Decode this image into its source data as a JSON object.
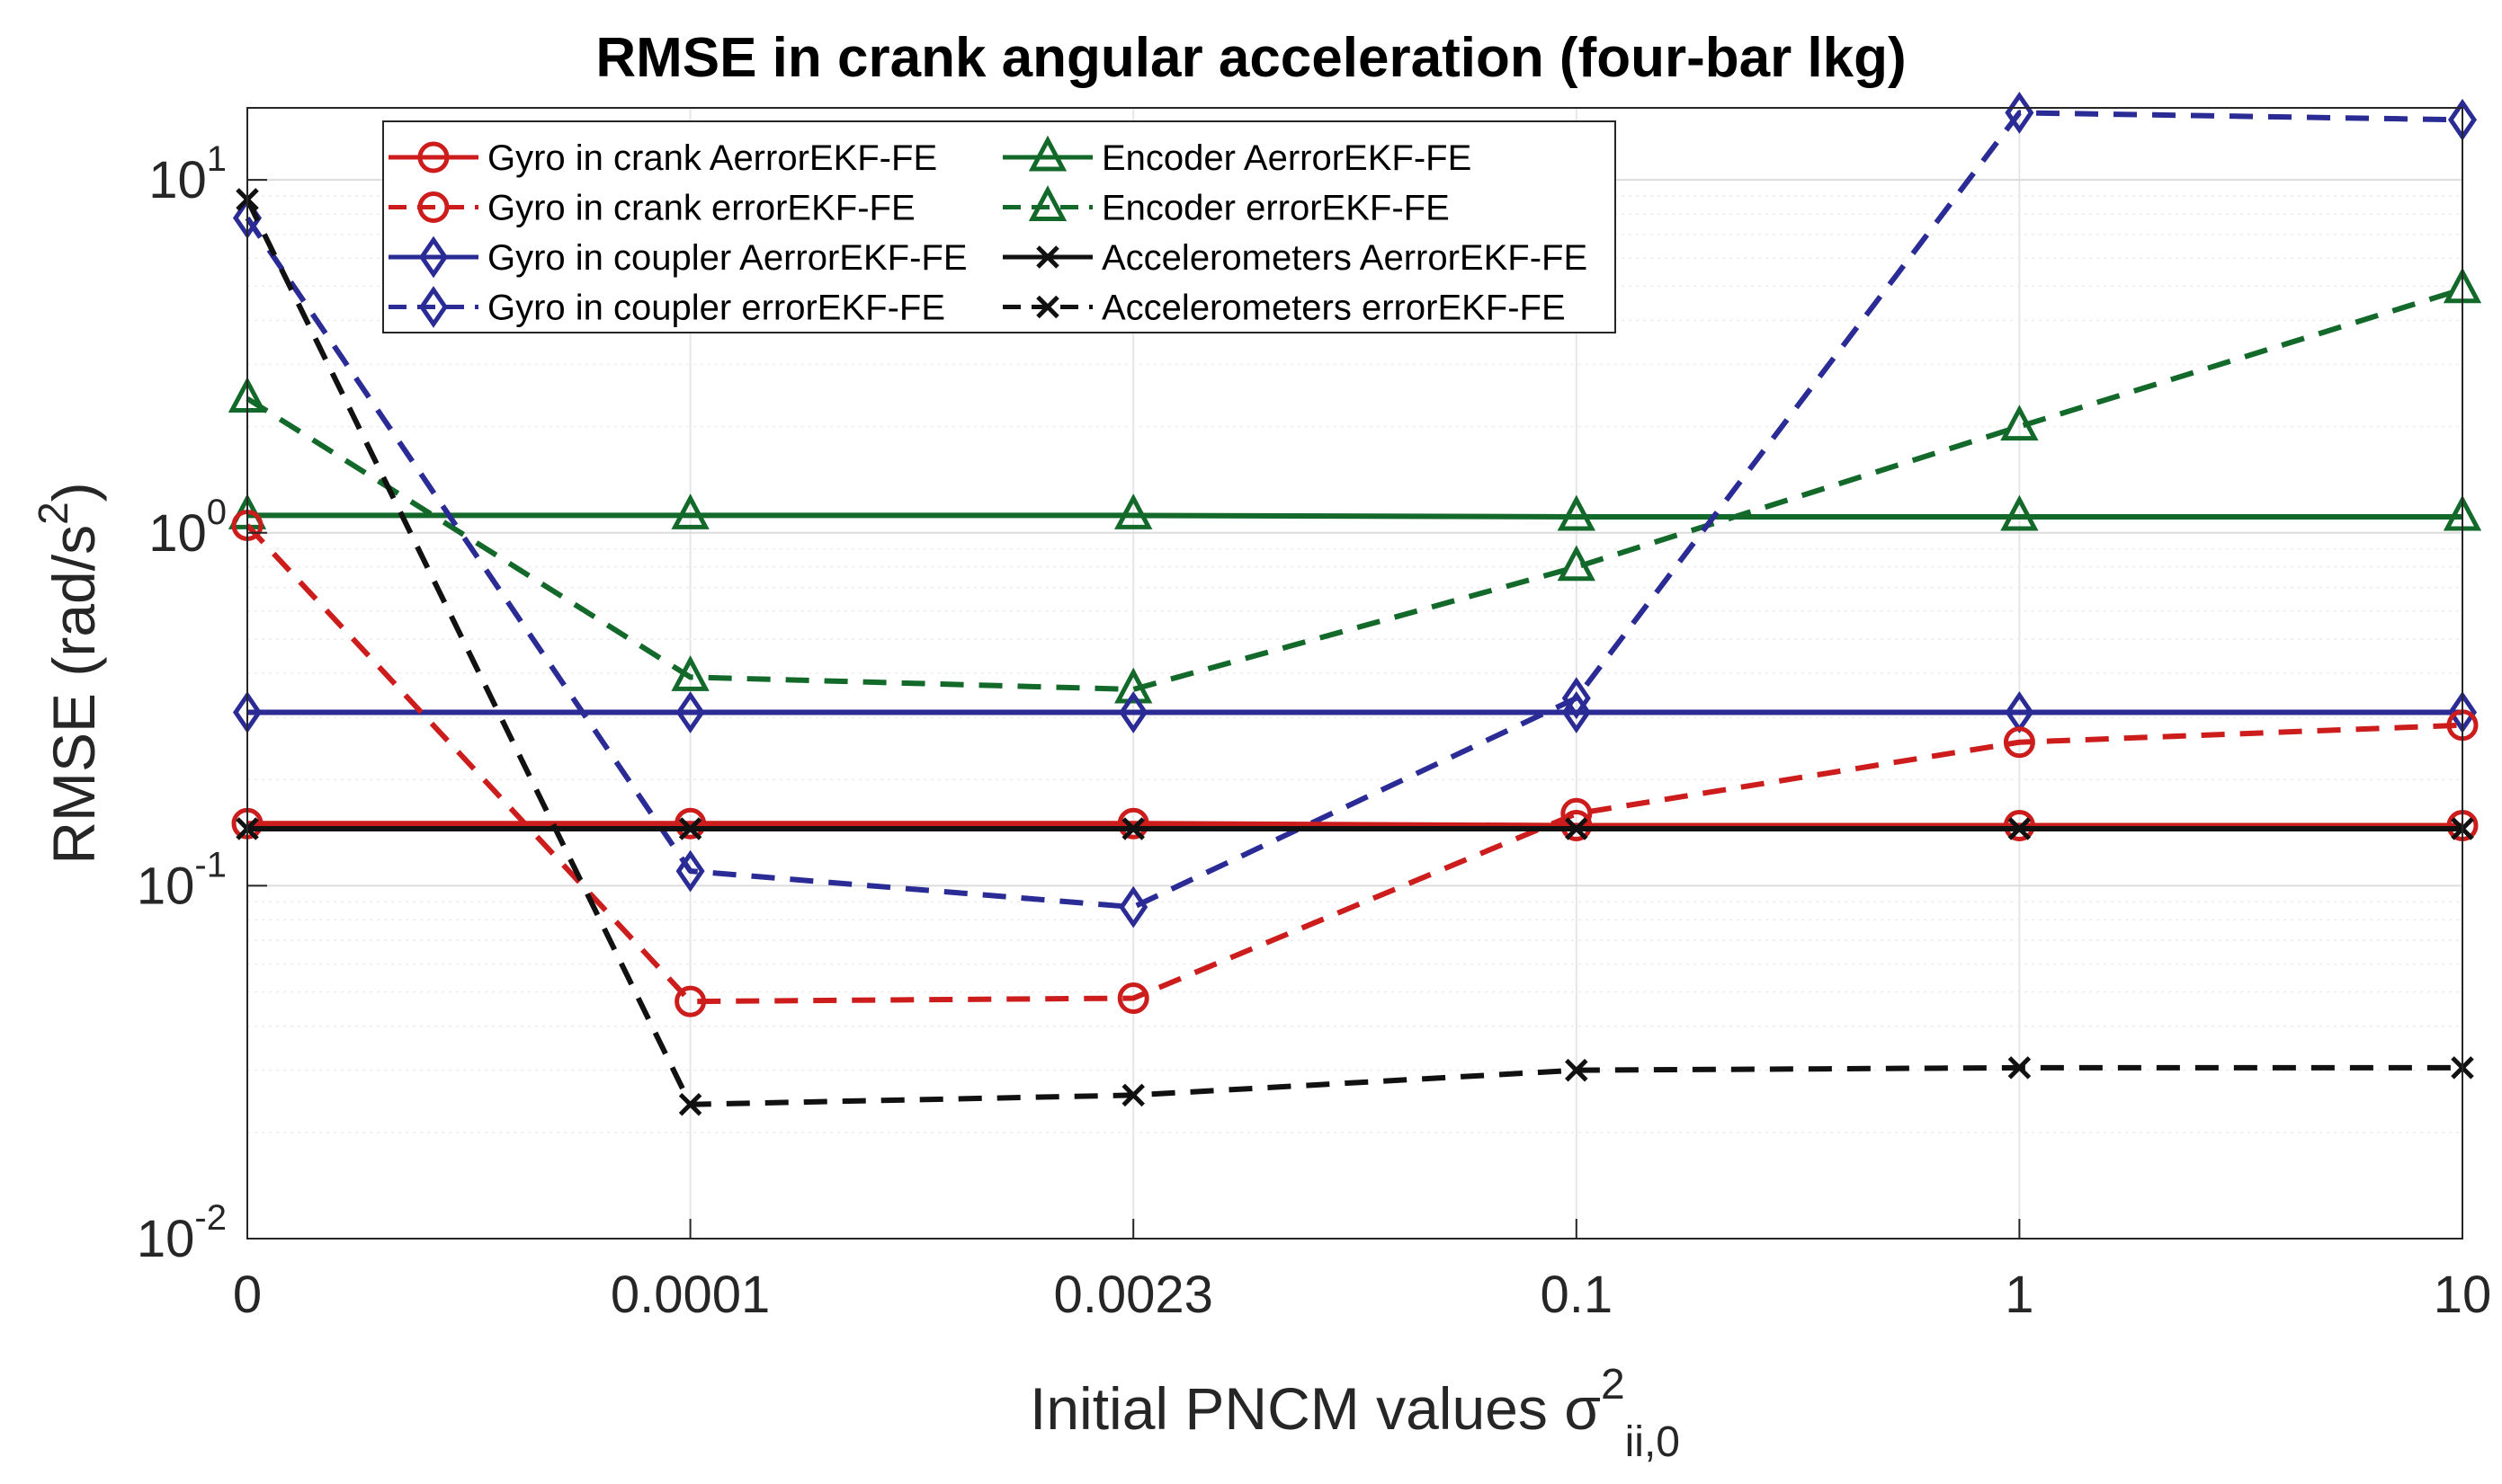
{
  "chart_data": {
    "type": "line",
    "title": "RMSE in crank angular acceleration (four-bar lkg)",
    "xlabel": "Initial PNCM values σ",
    "xlabel_superscript": "2",
    "xlabel_subscript": "ii,0",
    "ylabel": "RMSE (rad/s",
    "ylabel_superscript": "2",
    "ylabel_suffix": ")",
    "yscale": "log",
    "ylim": [
      0.01,
      16
    ],
    "categories": [
      "0",
      "0.0001",
      "0.0023",
      "0.1",
      "1",
      "10"
    ],
    "y_ticks": [
      {
        "base": "10",
        "exp": "-2",
        "value": 0.01
      },
      {
        "base": "10",
        "exp": "-1",
        "value": 0.1
      },
      {
        "base": "10",
        "exp": "0",
        "value": 1
      },
      {
        "base": "10",
        "exp": "1",
        "value": 10
      }
    ],
    "grid": true,
    "legend": "top-left",
    "series": [
      {
        "name": "Gyro in crank AerrorEKF-FE",
        "color": "#cc1c1c",
        "dash": "solid",
        "marker": "circle",
        "values": [
          0.15,
          0.15,
          0.15,
          0.148,
          0.148,
          0.148
        ]
      },
      {
        "name": "Gyro in crank errorEKF-FE",
        "color": "#cc1c1c",
        "dash": "dashed",
        "marker": "circle",
        "values": [
          1.05,
          0.047,
          0.048,
          0.16,
          0.255,
          0.285
        ]
      },
      {
        "name": "Gyro in coupler AerrorEKF-FE",
        "color": "#2b2b96",
        "dash": "solid",
        "marker": "diamond",
        "values": [
          0.31,
          0.31,
          0.31,
          0.31,
          0.31,
          0.31
        ]
      },
      {
        "name": "Gyro in coupler errorEKF-FE",
        "color": "#2b2b96",
        "dash": "dashed",
        "marker": "diamond",
        "values": [
          7.8,
          0.11,
          0.087,
          0.34,
          15.5,
          14.8
        ]
      },
      {
        "name": "Encoder AerrorEKF-FE",
        "color": "#12692a",
        "dash": "solid",
        "marker": "triangle",
        "values": [
          1.12,
          1.12,
          1.12,
          1.11,
          1.11,
          1.11
        ]
      },
      {
        "name": "Encoder errorEKF-FE",
        "color": "#12692a",
        "dash": "dashed",
        "marker": "triangle",
        "values": [
          2.4,
          0.39,
          0.36,
          0.8,
          2.0,
          4.9
        ]
      },
      {
        "name": "Accelerometers AerrorEKF-FE",
        "color": "#111111",
        "dash": "solid",
        "marker": "x",
        "values": [
          0.145,
          0.145,
          0.145,
          0.145,
          0.145,
          0.145
        ]
      },
      {
        "name": "Accelerometers errorEKF-FE",
        "color": "#111111",
        "dash": "dashed",
        "marker": "x",
        "values": [
          8.8,
          0.024,
          0.0255,
          0.03,
          0.0305,
          0.0305
        ]
      }
    ]
  }
}
